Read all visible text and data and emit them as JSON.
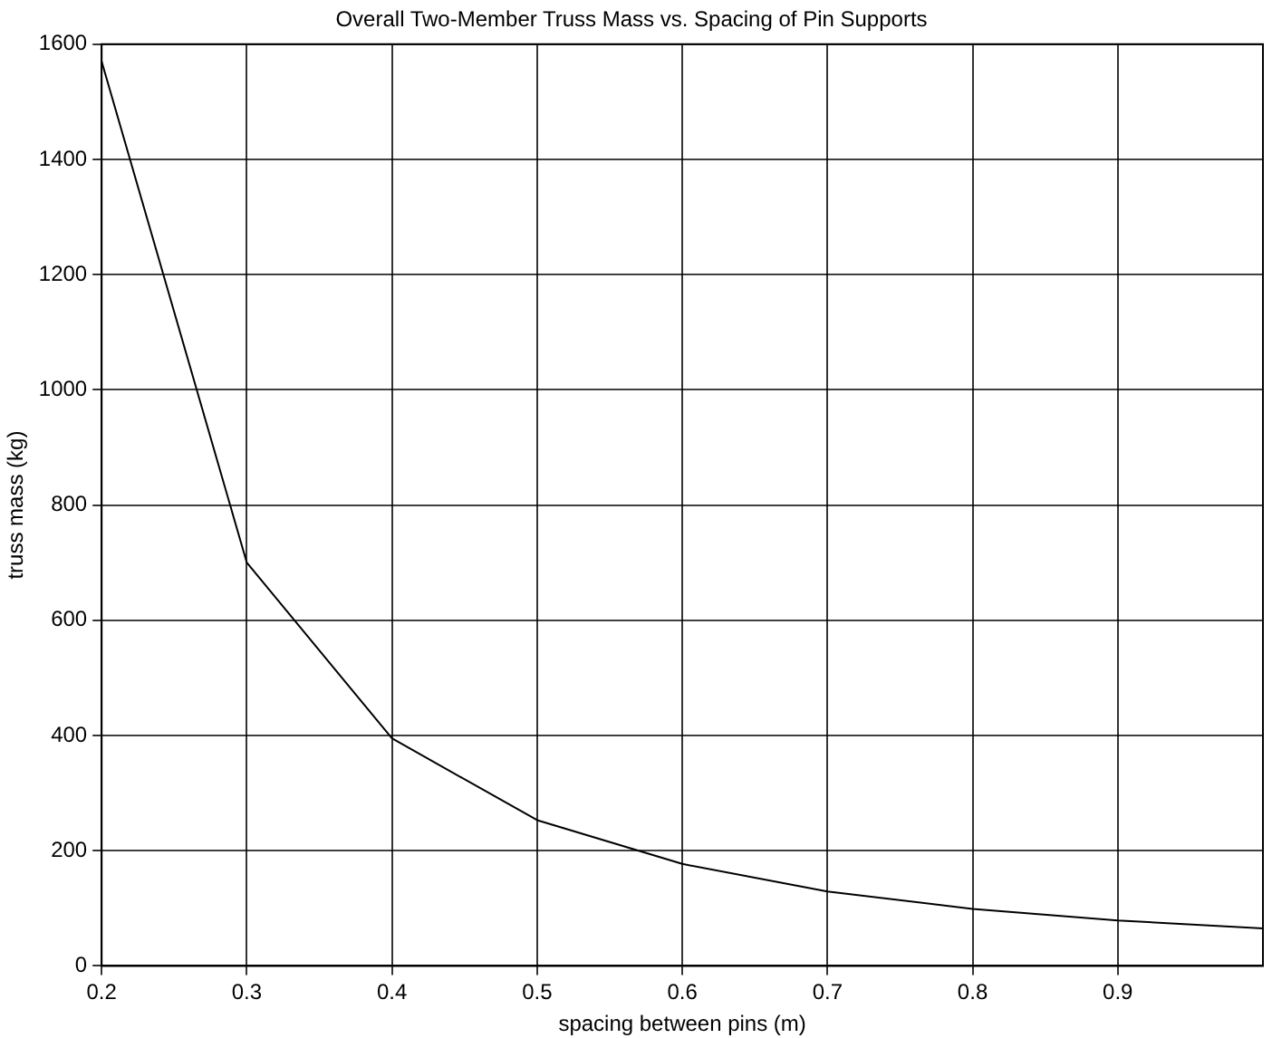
{
  "chart_data": {
    "type": "line",
    "title": "Overall Two-Member Truss Mass vs. Spacing of Pin Supports",
    "xlabel": "spacing between pins (m)",
    "ylabel": "truss mass (kg)",
    "x": [
      0.2,
      0.3,
      0.4,
      0.5,
      0.6,
      0.7,
      0.8,
      0.9,
      1.0
    ],
    "series": [
      {
        "color": "#000000",
        "values": [
          1570,
          700,
          395,
          253,
          177,
          129,
          99,
          79,
          65
        ]
      }
    ],
    "xlim": [
      0.2,
      1.0
    ],
    "xticks": [
      0.2,
      0.3,
      0.4,
      0.5,
      0.6,
      0.7,
      0.8,
      0.9
    ],
    "ylim": [
      0,
      1600
    ],
    "yticks": [
      0,
      200,
      400,
      600,
      800,
      1000,
      1200,
      1400,
      1600
    ],
    "grid": true,
    "legend": false,
    "marker": "none",
    "line_style": "solid"
  }
}
